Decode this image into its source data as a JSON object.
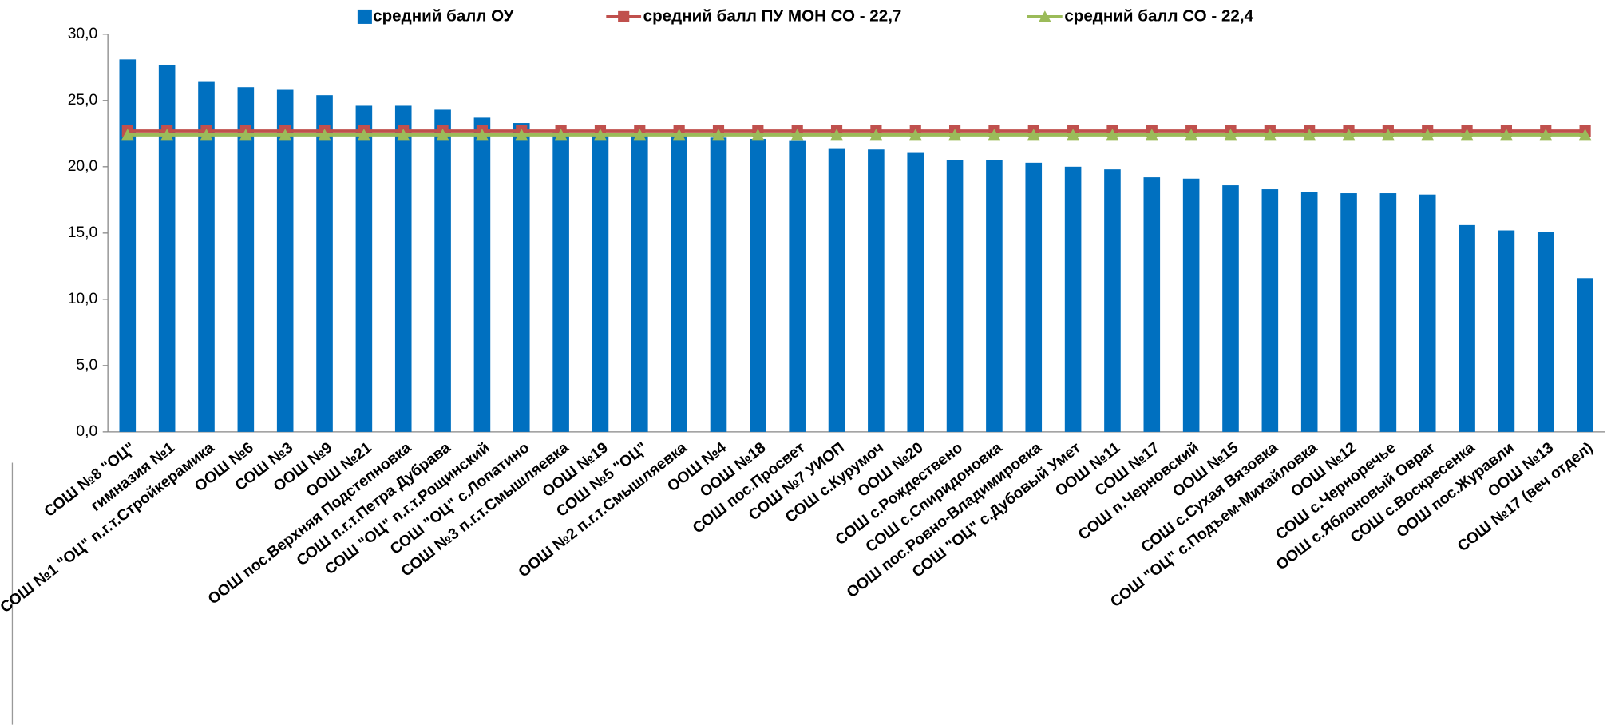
{
  "chart_data": {
    "type": "bar",
    "categories": [
      "СОШ №8 \"ОЦ\"",
      "гимназия №1",
      "СОШ №1 \"ОЦ\" п.г.т.Стройкерамика",
      "ООШ №6",
      "СОШ №3",
      "ООШ №9",
      "ООШ №21",
      "ООШ пос.Верхняя Подстепновка",
      "СОШ п.г.т.Петра Дубрава",
      "СОШ \"ОЦ\" п.г.т.Рощинский",
      "СОШ \"ОЦ\" с.Лопатино",
      "СОШ №3 п.г.т.Смышляевка",
      "ООШ №19",
      "СОШ №5 \"ОЦ\"",
      "ООШ №2 п.г.т.Смышляевка",
      "ООШ №4",
      "ООШ №18",
      "СОШ пос.Просвет",
      "СОШ №7 УИОП",
      "СОШ с.Курумоч",
      "ООШ №20",
      "СОШ с.Рождествено",
      "СОШ с.Спиридоновка",
      "ООШ пос.Ровно-Владимировка",
      "СОШ \"ОЦ\" с.Дубовый Умет",
      "ООШ №11",
      "СОШ №17",
      "СОШ п.Черновский",
      "ООШ №15",
      "СОШ с.Сухая Вязовка",
      "СОШ \"ОЦ\" с.Подъем-Михайловка",
      "ООШ №12",
      "СОШ с.Черноречье",
      "ООШ с.Яблоновый Овраг",
      "СОШ с.Воскресенка",
      "ООШ пос.Журавли",
      "ООШ №13",
      "СОШ №17 (веч отдел)"
    ],
    "series": [
      {
        "name": "средний балл ОУ",
        "type": "bar",
        "color": "#0070c0",
        "values": [
          28.1,
          27.7,
          26.4,
          26.0,
          25.8,
          25.4,
          24.6,
          24.6,
          24.3,
          23.7,
          23.3,
          22.6,
          22.5,
          22.4,
          22.3,
          22.2,
          22.1,
          22.0,
          21.4,
          21.3,
          21.1,
          20.5,
          20.5,
          20.3,
          20.0,
          19.8,
          19.2,
          19.1,
          18.6,
          18.3,
          18.1,
          18.0,
          18.0,
          17.9,
          15.6,
          15.2,
          15.1,
          11.6
        ]
      },
      {
        "name": "средний балл ПУ МОН СО - 22,7",
        "type": "line",
        "marker": "square",
        "color": "#c0504d",
        "values": [
          22.7,
          22.7,
          22.7,
          22.7,
          22.7,
          22.7,
          22.7,
          22.7,
          22.7,
          22.7,
          22.7,
          22.7,
          22.7,
          22.7,
          22.7,
          22.7,
          22.7,
          22.7,
          22.7,
          22.7,
          22.7,
          22.7,
          22.7,
          22.7,
          22.7,
          22.7,
          22.7,
          22.7,
          22.7,
          22.7,
          22.7,
          22.7,
          22.7,
          22.7,
          22.7,
          22.7,
          22.7,
          22.7
        ]
      },
      {
        "name": "средний балл СО - 22,4",
        "type": "line",
        "marker": "triangle",
        "color": "#9bbb59",
        "values": [
          22.4,
          22.4,
          22.4,
          22.4,
          22.4,
          22.4,
          22.4,
          22.4,
          22.4,
          22.4,
          22.4,
          22.4,
          22.4,
          22.4,
          22.4,
          22.4,
          22.4,
          22.4,
          22.4,
          22.4,
          22.4,
          22.4,
          22.4,
          22.4,
          22.4,
          22.4,
          22.4,
          22.4,
          22.4,
          22.4,
          22.4,
          22.4,
          22.4,
          22.4,
          22.4,
          22.4,
          22.4,
          22.4
        ]
      }
    ],
    "ylim": [
      0,
      30
    ],
    "yticks": [
      {
        "value": 0,
        "label": "0,0"
      },
      {
        "value": 5,
        "label": "5,0"
      },
      {
        "value": 10,
        "label": "10,0"
      },
      {
        "value": 15,
        "label": "15,0"
      },
      {
        "value": 20,
        "label": "20,0"
      },
      {
        "value": 25,
        "label": "25,0"
      },
      {
        "value": 30,
        "label": "30,0"
      }
    ],
    "legend": "top"
  }
}
